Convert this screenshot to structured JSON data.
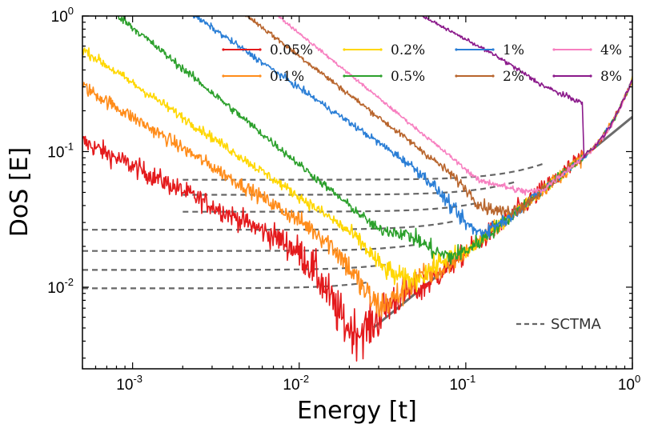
{
  "chart_data": {
    "type": "line",
    "xscale": "log",
    "yscale": "log",
    "xlim": [
      0.0005,
      1
    ],
    "ylim": [
      0.0025,
      1
    ],
    "xlabel": "Energy [t]",
    "ylabel": "DoS [E]",
    "x_ticks": [
      {
        "value": 0.001,
        "base": "10",
        "exp": "-3"
      },
      {
        "value": 0.01,
        "base": "10",
        "exp": "-2"
      },
      {
        "value": 0.1,
        "base": "10",
        "exp": "-1"
      },
      {
        "value": 1,
        "base": "10",
        "exp": "0"
      }
    ],
    "y_ticks": [
      {
        "value": 0.01,
        "base": "10",
        "exp": "-2"
      },
      {
        "value": 0.1,
        "base": "10",
        "exp": "-1"
      },
      {
        "value": 1,
        "base": "10",
        "exp": "0"
      }
    ],
    "series": [
      {
        "name": "0.05%",
        "color": "#e41a1c",
        "xstart": 0.0005,
        "start": 0.029,
        "c": 0.0098,
        "c_from": 0.0005,
        "tilt": 0.1,
        "dip_x": 0.021,
        "dip_depth": 1.15,
        "noise": 0.25,
        "sctma_start": 0.0005,
        "sctma_end": 0.026
      },
      {
        "name": "0.1%",
        "color": "#ff8c1a",
        "xstart": 0.0005,
        "start": 0.052,
        "c": 0.0134,
        "c_from": 0.0005,
        "tilt": 0.1,
        "dip_x": 0.03,
        "dip_depth": 0.75,
        "noise": 0.17,
        "sctma_start": 0.0005,
        "sctma_end": 0.033
      },
      {
        "name": "0.2%",
        "color": "#ffd700",
        "xstart": 0.0005,
        "start": 0.082,
        "c": 0.0185,
        "c_from": 0.0005,
        "tilt": 0.1,
        "dip_x": 0.045,
        "dip_depth": 0.6,
        "noise": 0.12,
        "sctma_start": 0.0005,
        "sctma_end": 0.05
      },
      {
        "name": "0.5%",
        "color": "#2ca02c",
        "xstart": 0.0005,
        "start": 0.16,
        "c": 0.0265,
        "c_from": 0.0005,
        "tilt": 0.1,
        "dip_x": 0.08,
        "dip_depth": 0.55,
        "noise": 0.1,
        "sctma_start": 0.0005,
        "sctma_end": 0.085
      },
      {
        "name": "1%",
        "color": "#2a7ed6",
        "xstart": 0.0005,
        "start": 0.27,
        "c": 0.036,
        "c_from": 0.002,
        "tilt": 0.1,
        "dip_x": 0.11,
        "dip_depth": 0.45,
        "noise": 0.08,
        "sctma_start": 0.002,
        "sctma_end": 0.12
      },
      {
        "name": "2%",
        "color": "#b8652d",
        "xstart": 0.0005,
        "start": 0.46,
        "c": 0.048,
        "c_from": 0.002,
        "tilt": 0.12,
        "dip_x": 0.17,
        "dip_depth": 0.35,
        "noise": 0.07,
        "sctma_start": 0.002,
        "sctma_end": 0.2
      },
      {
        "name": "4%",
        "color": "#f77fc0",
        "xstart": 0.00065,
        "start": 0.6,
        "c": 0.062,
        "c_from": 0.002,
        "tilt": 0.15,
        "dip_x": 0.24,
        "dip_depth": 0.25,
        "noise": 0.04,
        "sctma_start": 0.002,
        "sctma_end": 0.3
      },
      {
        "name": "8%",
        "color": "#8b1a8b",
        "xstart": 0.00065,
        "start": 0.8,
        "c": 0.072,
        "c_from": 0.05,
        "tilt": 0.25,
        "dip_x": 0.3,
        "dip_depth": 0.1,
        "noise": 0.03,
        "sctma_start": null,
        "sctma_end": null
      }
    ],
    "clean_dos": {
      "a": 0.18,
      "power": 1,
      "xstart": 0.028,
      "xend": 1
    },
    "sctma_legend": "SCTMA"
  }
}
